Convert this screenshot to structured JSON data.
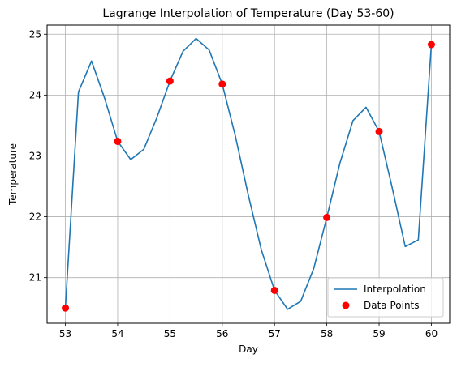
{
  "chart_data": {
    "type": "line",
    "title": "Lagrange Interpolation of Temperature (Day 53-60)",
    "xlabel": "Day",
    "ylabel": "Temperature",
    "xlim": [
      52.65,
      60.35
    ],
    "ylim": [
      20.25,
      25.15
    ],
    "xticks": [
      53,
      54,
      55,
      56,
      57,
      58,
      59,
      60
    ],
    "yticks": [
      21,
      22,
      23,
      24,
      25
    ],
    "grid": true,
    "legend_position": "lower-right",
    "series": [
      {
        "name": "Interpolation",
        "kind": "line",
        "color": "#1f77b4",
        "x": [
          53.0,
          53.25,
          53.5,
          53.75,
          54.0,
          54.25,
          54.5,
          54.75,
          55.0,
          55.25,
          55.5,
          55.75,
          56.0,
          56.25,
          56.5,
          56.75,
          57.0,
          57.25,
          57.5,
          57.75,
          58.0,
          58.25,
          58.5,
          58.75,
          59.0,
          59.25,
          59.5,
          59.75,
          60.0
        ],
        "y": [
          20.5,
          24.05,
          24.56,
          23.95,
          23.24,
          22.94,
          23.11,
          23.63,
          24.23,
          24.72,
          24.93,
          24.74,
          24.18,
          23.33,
          22.35,
          21.45,
          20.79,
          20.48,
          20.61,
          21.15,
          21.99,
          22.88,
          23.58,
          23.8,
          23.4,
          22.48,
          21.51,
          21.62,
          24.83
        ]
      },
      {
        "name": "Data Points",
        "kind": "scatter",
        "color": "#ff0000",
        "x": [
          53,
          54,
          55,
          56,
          57,
          58,
          59,
          60
        ],
        "y": [
          20.5,
          23.24,
          24.23,
          24.18,
          20.79,
          21.99,
          23.4,
          24.83
        ]
      }
    ]
  }
}
